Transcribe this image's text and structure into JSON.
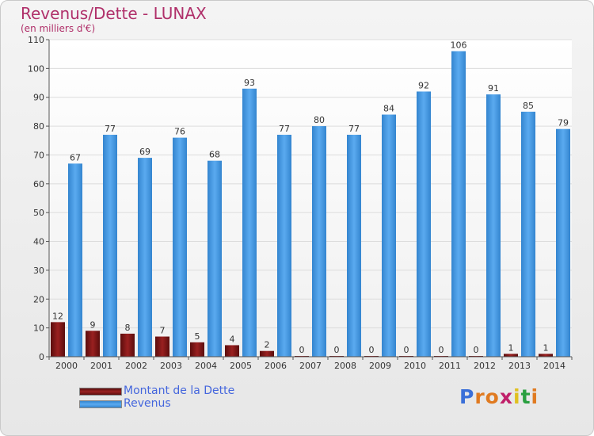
{
  "header": {
    "title": "Revenus/Dette - LUNAX",
    "subtitle": "(en milliers d'€)"
  },
  "chart_data": {
    "type": "bar",
    "title": "Revenus/Dette - LUNAX",
    "subtitle": "(en milliers d'€)",
    "xlabel": "",
    "ylabel": "",
    "ylim": [
      0,
      110
    ],
    "yticks": [
      0,
      10,
      20,
      30,
      40,
      50,
      60,
      70,
      80,
      90,
      100,
      110
    ],
    "grid": true,
    "legend_position": "bottom-left",
    "categories": [
      "2000",
      "2001",
      "2002",
      "2003",
      "2004",
      "2005",
      "2006",
      "2007",
      "2008",
      "2009",
      "2010",
      "2011",
      "2012",
      "2013",
      "2014"
    ],
    "series": [
      {
        "name": "Montant de la Dette",
        "color": "#7a1515",
        "values": [
          12,
          9,
          8,
          7,
          5,
          4,
          2,
          0,
          0,
          0,
          0,
          0,
          0,
          1,
          1
        ]
      },
      {
        "name": "Revenus",
        "color": "#3d8fd6",
        "values": [
          67,
          77,
          69,
          76,
          68,
          93,
          77,
          80,
          77,
          84,
          92,
          106,
          91,
          85,
          79
        ]
      }
    ]
  },
  "logo": {
    "letters": [
      "P",
      "r",
      "o",
      "x",
      "i",
      "t",
      "i"
    ],
    "colors": [
      "#3a6fd8",
      "#e07a20",
      "#e07a20",
      "#c0206a",
      "#e0c020",
      "#2aa040",
      "#e07a20"
    ]
  }
}
